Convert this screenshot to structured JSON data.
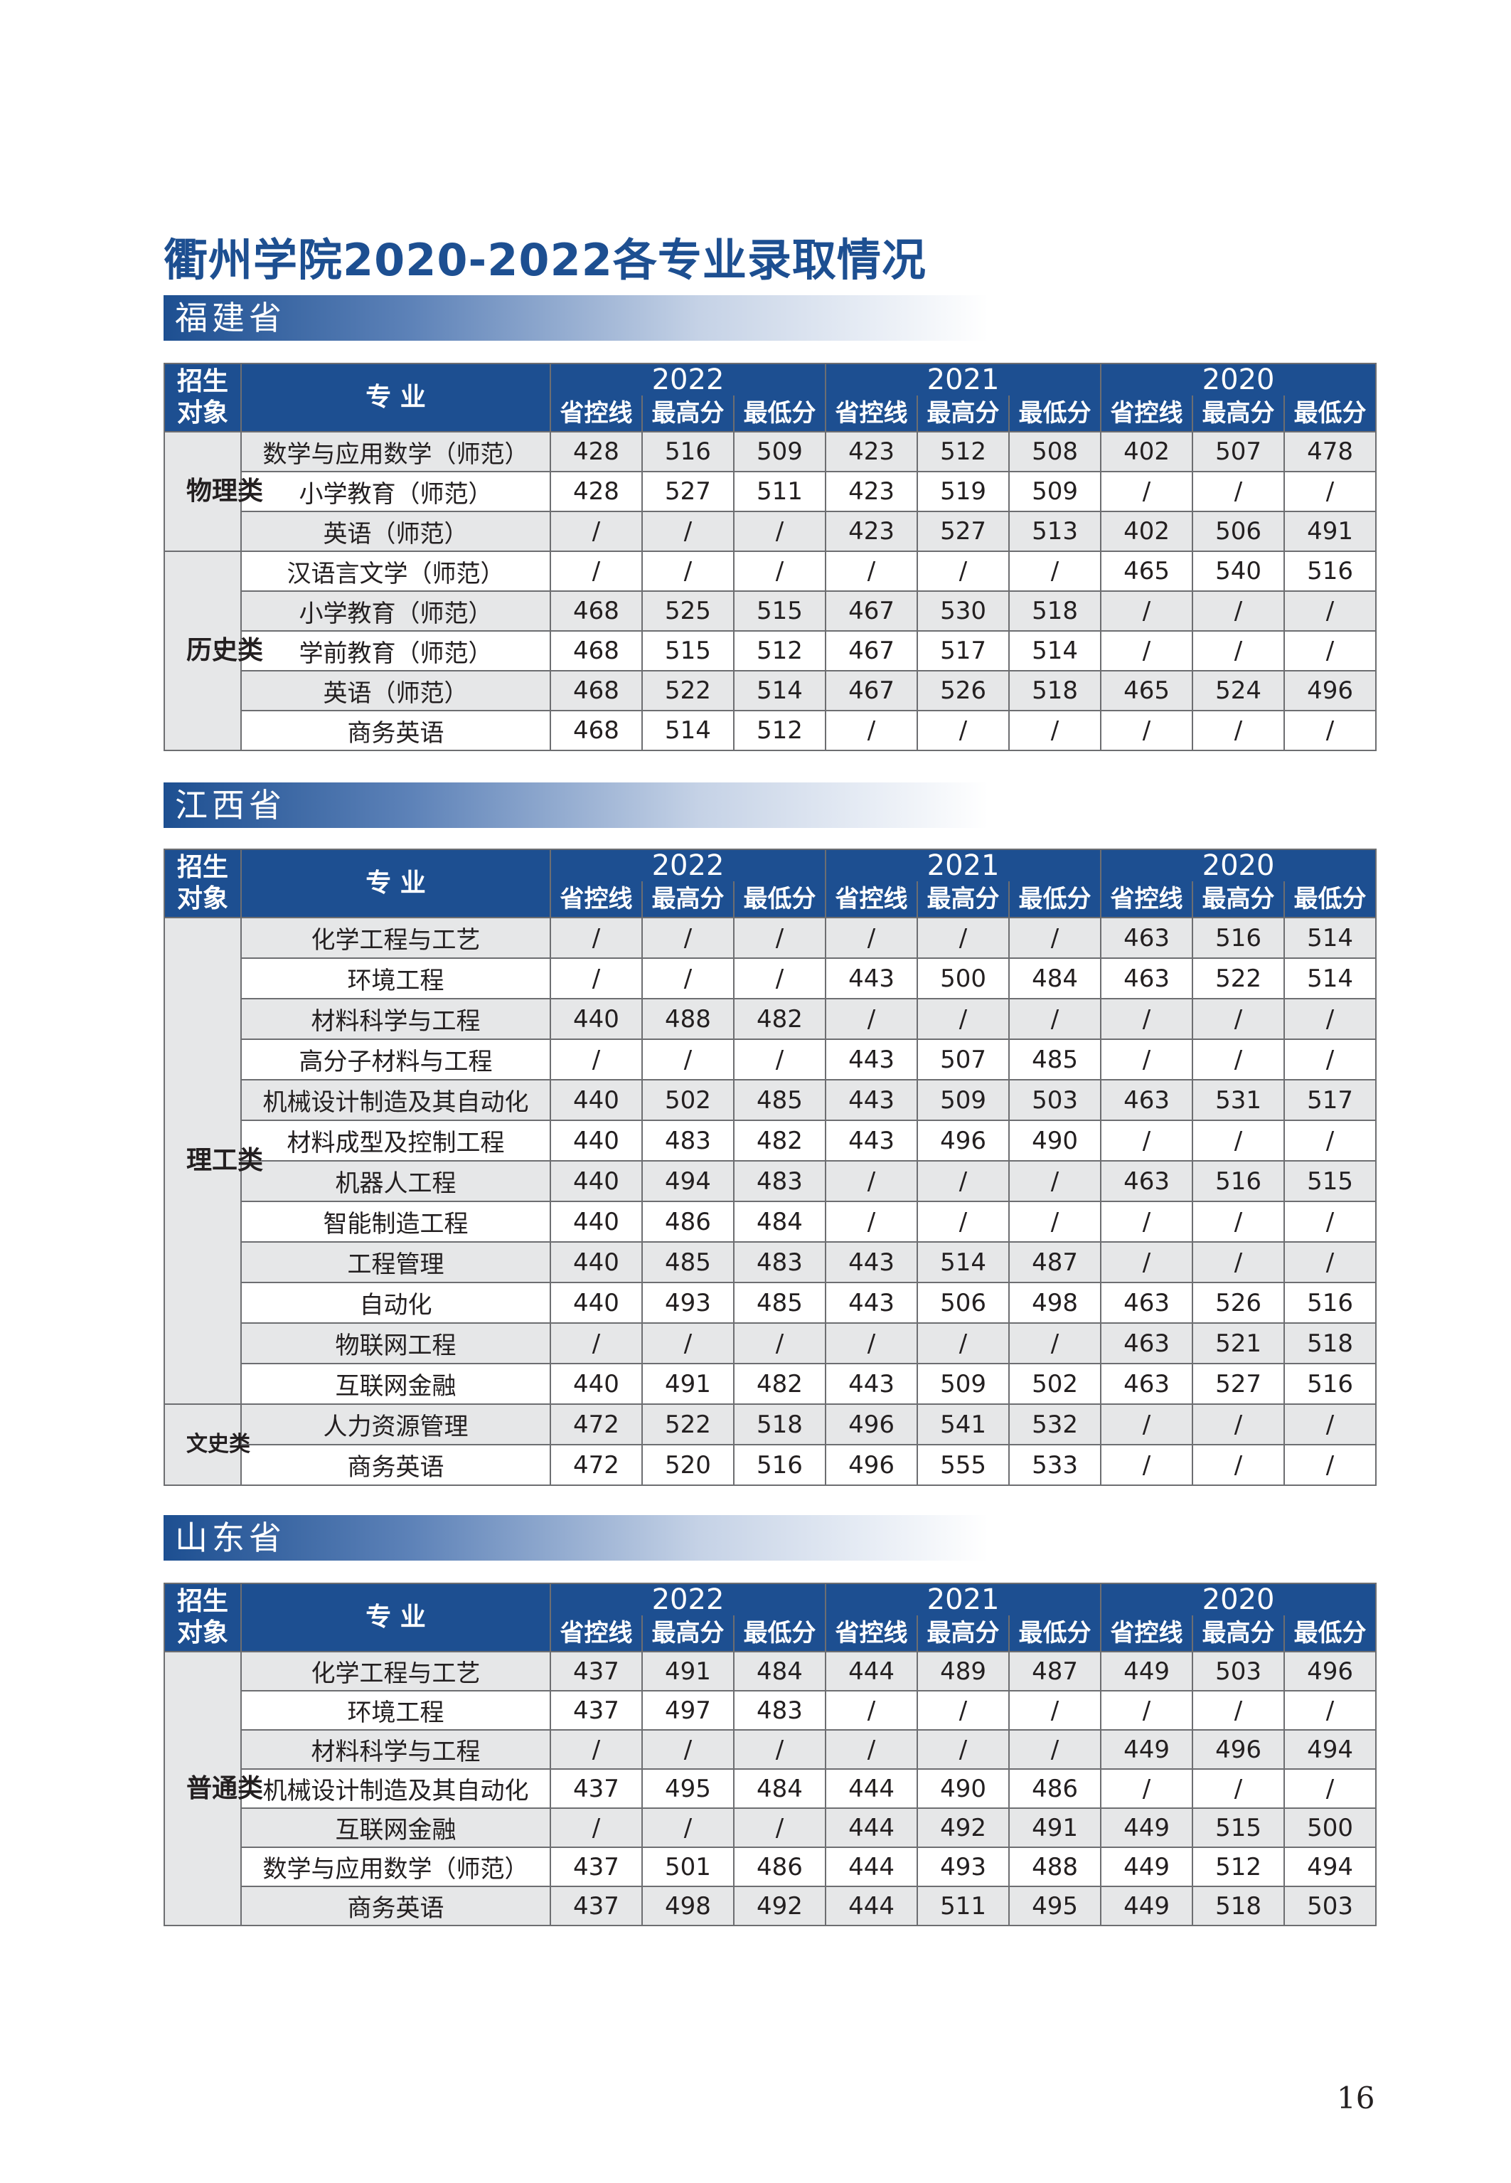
{
  "title": "衢州学院2020-2022各专业录取情况",
  "header": {
    "col_category": "招生对象",
    "col_major": "专  业",
    "years": [
      "2022",
      "2021",
      "2020"
    ],
    "sub_cols": [
      "省控线",
      "最高分",
      "最低分"
    ]
  },
  "provinces": [
    {
      "name": "福建省",
      "groups": [
        {
          "category": "物理类",
          "rows": [
            {
              "major": "数学与应用数学（师范）",
              "values": [
                "428",
                "516",
                "509",
                "423",
                "512",
                "508",
                "402",
                "507",
                "478"
              ]
            },
            {
              "major": "小学教育（师范）",
              "values": [
                "428",
                "527",
                "511",
                "423",
                "519",
                "509",
                "/",
                "/",
                "/"
              ]
            },
            {
              "major": "英语（师范）",
              "values": [
                "/",
                "/",
                "/",
                "423",
                "527",
                "513",
                "402",
                "506",
                "491"
              ]
            }
          ]
        },
        {
          "category": "历史类",
          "rows": [
            {
              "major": "汉语言文学（师范）",
              "values": [
                "/",
                "/",
                "/",
                "/",
                "/",
                "/",
                "465",
                "540",
                "516"
              ]
            },
            {
              "major": "小学教育（师范）",
              "values": [
                "468",
                "525",
                "515",
                "467",
                "530",
                "518",
                "/",
                "/",
                "/"
              ]
            },
            {
              "major": "学前教育（师范）",
              "values": [
                "468",
                "515",
                "512",
                "467",
                "517",
                "514",
                "/",
                "/",
                "/"
              ]
            },
            {
              "major": "英语（师范）",
              "values": [
                "468",
                "522",
                "514",
                "467",
                "526",
                "518",
                "465",
                "524",
                "496"
              ]
            },
            {
              "major": "商务英语",
              "values": [
                "468",
                "514",
                "512",
                "/",
                "/",
                "/",
                "/",
                "/",
                "/"
              ]
            }
          ]
        }
      ]
    },
    {
      "name": "江西省",
      "groups": [
        {
          "category": "理工类",
          "rows": [
            {
              "major": "化学工程与工艺",
              "values": [
                "/",
                "/",
                "/",
                "/",
                "/",
                "/",
                "463",
                "516",
                "514"
              ]
            },
            {
              "major": "环境工程",
              "values": [
                "/",
                "/",
                "/",
                "443",
                "500",
                "484",
                "463",
                "522",
                "514"
              ]
            },
            {
              "major": "材料科学与工程",
              "values": [
                "440",
                "488",
                "482",
                "/",
                "/",
                "/",
                "/",
                "/",
                "/"
              ]
            },
            {
              "major": "高分子材料与工程",
              "values": [
                "/",
                "/",
                "/",
                "443",
                "507",
                "485",
                "/",
                "/",
                "/"
              ]
            },
            {
              "major": "机械设计制造及其自动化",
              "values": [
                "440",
                "502",
                "485",
                "443",
                "509",
                "503",
                "463",
                "531",
                "517"
              ]
            },
            {
              "major": "材料成型及控制工程",
              "values": [
                "440",
                "483",
                "482",
                "443",
                "496",
                "490",
                "/",
                "/",
                "/"
              ]
            },
            {
              "major": "机器人工程",
              "values": [
                "440",
                "494",
                "483",
                "/",
                "/",
                "/",
                "463",
                "516",
                "515"
              ]
            },
            {
              "major": "智能制造工程",
              "values": [
                "440",
                "486",
                "484",
                "/",
                "/",
                "/",
                "/",
                "/",
                "/"
              ]
            },
            {
              "major": "工程管理",
              "values": [
                "440",
                "485",
                "483",
                "443",
                "514",
                "487",
                "/",
                "/",
                "/"
              ]
            },
            {
              "major": "自动化",
              "values": [
                "440",
                "493",
                "485",
                "443",
                "506",
                "498",
                "463",
                "526",
                "516"
              ]
            },
            {
              "major": "物联网工程",
              "values": [
                "/",
                "/",
                "/",
                "/",
                "/",
                "/",
                "463",
                "521",
                "518"
              ]
            },
            {
              "major": "互联网金融",
              "values": [
                "440",
                "491",
                "482",
                "443",
                "509",
                "502",
                "463",
                "527",
                "516"
              ]
            }
          ]
        },
        {
          "category": "文史类",
          "rows": [
            {
              "major": "人力资源管理",
              "values": [
                "472",
                "522",
                "518",
                "496",
                "541",
                "532",
                "/",
                "/",
                "/"
              ]
            },
            {
              "major": "商务英语",
              "values": [
                "472",
                "520",
                "516",
                "496",
                "555",
                "533",
                "/",
                "/",
                "/"
              ]
            }
          ]
        }
      ]
    },
    {
      "name": "山东省",
      "groups": [
        {
          "category": "普通类",
          "rows": [
            {
              "major": "化学工程与工艺",
              "values": [
                "437",
                "491",
                "484",
                "444",
                "489",
                "487",
                "449",
                "503",
                "496"
              ]
            },
            {
              "major": "环境工程",
              "values": [
                "437",
                "497",
                "483",
                "/",
                "/",
                "/",
                "/",
                "/",
                "/"
              ]
            },
            {
              "major": "材料科学与工程",
              "values": [
                "/",
                "/",
                "/",
                "/",
                "/",
                "/",
                "449",
                "496",
                "494"
              ]
            },
            {
              "major": "机械设计制造及其自动化",
              "values": [
                "437",
                "495",
                "484",
                "444",
                "490",
                "486",
                "/",
                "/",
                "/"
              ]
            },
            {
              "major": "互联网金融",
              "values": [
                "/",
                "/",
                "/",
                "444",
                "492",
                "491",
                "449",
                "515",
                "500"
              ]
            },
            {
              "major": "数学与应用数学（师范）",
              "values": [
                "437",
                "501",
                "486",
                "444",
                "493",
                "488",
                "449",
                "512",
                "494"
              ]
            },
            {
              "major": "商务英语",
              "values": [
                "437",
                "498",
                "492",
                "444",
                "511",
                "495",
                "449",
                "518",
                "503"
              ]
            }
          ]
        }
      ]
    }
  ],
  "page_number": "16",
  "colors": {
    "header_blue": "#1d4f91",
    "row_gray": "#e6e7e8"
  }
}
